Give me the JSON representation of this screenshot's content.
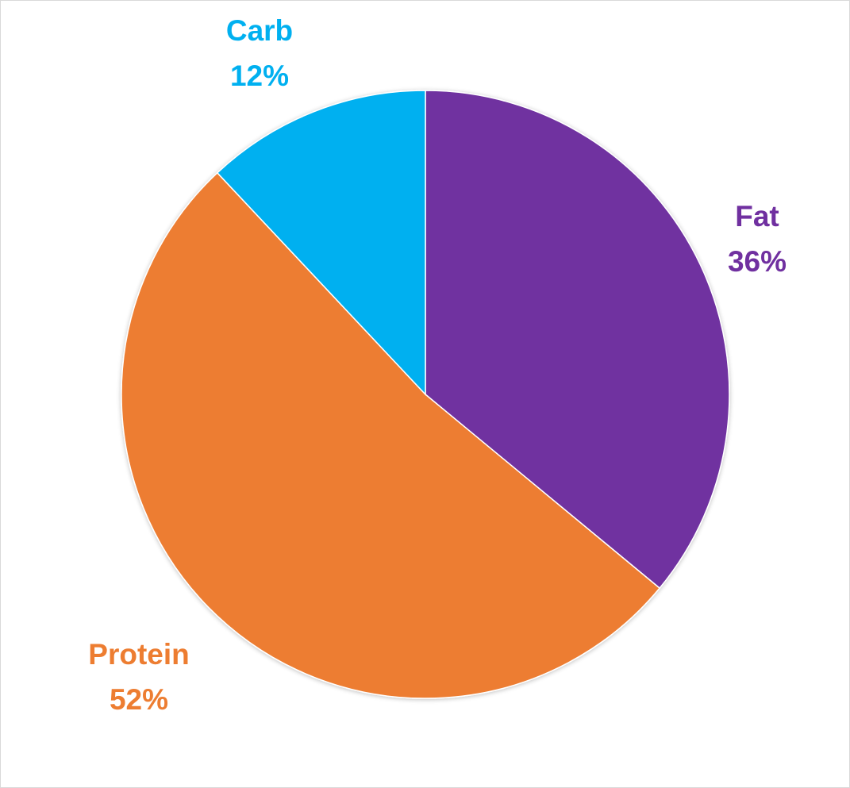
{
  "chart_data": {
    "type": "pie",
    "title": "",
    "start_angle_deg": 0,
    "direction": "clockwise",
    "slices": [
      {
        "label": "Fat",
        "value": 36,
        "value_label": "36%",
        "color": "#7030a0"
      },
      {
        "label": "Protein",
        "value": 52,
        "value_label": "52%",
        "color": "#ed7d31"
      },
      {
        "label": "Carb",
        "value": 12,
        "value_label": "12%",
        "color": "#00b0f0"
      }
    ],
    "legend": "none",
    "data_labels": "outside, name and percentage"
  }
}
